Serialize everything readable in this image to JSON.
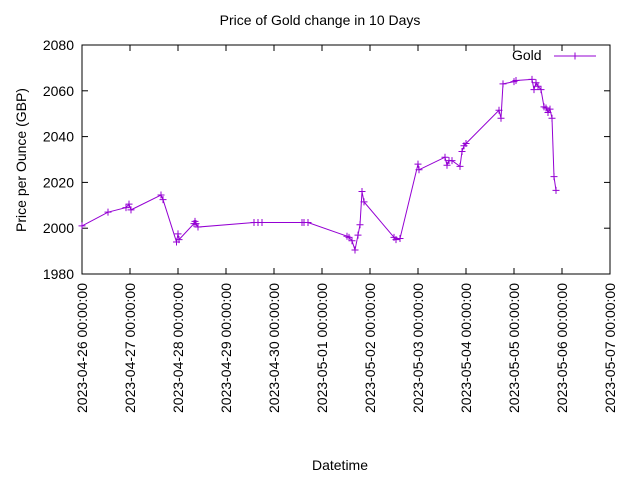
{
  "chart_data": {
    "type": "line",
    "title": "Price of Gold change in 10 Days",
    "xlabel": "Datetime",
    "ylabel": "Price per Ounce (GBP)",
    "ylim": [
      1980,
      2080
    ],
    "yticks": [
      1980,
      2000,
      2020,
      2040,
      2060,
      2080
    ],
    "xticks": [
      "2023-04-26 00:00:00",
      "2023-04-27 00:00:00",
      "2023-04-28 00:00:00",
      "2023-04-29 00:00:00",
      "2023-04-30 00:00:00",
      "2023-05-01 00:00:00",
      "2023-05-02 00:00:00",
      "2023-05-03 00:00:00",
      "2023-05-04 00:00:00",
      "2023-05-05 00:00:00",
      "2023-05-06 00:00:00",
      "2023-05-07 00:00:00"
    ],
    "xlim": [
      "2023-04-26 00:00:00",
      "2023-05-07 00:00:00"
    ],
    "legend_position": "top-right",
    "grid": false,
    "colors": {
      "series": "#9400d3",
      "axis": "#000000"
    },
    "series": [
      {
        "name": "Gold",
        "points": [
          [
            "2023-04-26 00:00:00",
            2001
          ],
          [
            "2023-04-26 13:00:00",
            2007
          ],
          [
            "2023-04-26 22:00:00",
            2009
          ],
          [
            "2023-04-26 23:30:00",
            2010.5
          ],
          [
            "2023-04-27 00:30:00",
            2008
          ],
          [
            "2023-04-27 15:30:00",
            2014.5
          ],
          [
            "2023-04-27 16:30:00",
            2012.5
          ],
          [
            "2023-04-27 23:15:00",
            1994
          ],
          [
            "2023-04-28 00:00:00",
            1997.5
          ],
          [
            "2023-04-28 00:30:00",
            1995
          ],
          [
            "2023-04-28 08:00:00",
            2002
          ],
          [
            "2023-04-28 08:30:00",
            2003
          ],
          [
            "2023-04-28 09:00:00",
            2002
          ],
          [
            "2023-04-28 10:00:00",
            2000.5
          ],
          [
            "2023-04-29 14:00:00",
            2002.5
          ],
          [
            "2023-04-29 16:00:00",
            2002.5
          ],
          [
            "2023-04-29 18:00:00",
            2002.5
          ],
          [
            "2023-04-30 14:00:00",
            2002.5
          ],
          [
            "2023-04-30 15:00:00",
            2002.5
          ],
          [
            "2023-04-30 17:00:00",
            2002.5
          ],
          [
            "2023-05-01 12:30:00",
            1996.5
          ],
          [
            "2023-05-01 13:30:00",
            1996
          ],
          [
            "2023-05-01 15:00:00",
            1994.5
          ],
          [
            "2023-05-01 16:30:00",
            1990.5
          ],
          [
            "2023-05-01 18:00:00",
            1997
          ],
          [
            "2023-05-01 19:00:00",
            2001.5
          ],
          [
            "2023-05-01 20:00:00",
            2016
          ],
          [
            "2023-05-01 21:00:00",
            2011.5
          ],
          [
            "2023-05-02 12:00:00",
            1996
          ],
          [
            "2023-05-02 13:00:00",
            1995
          ],
          [
            "2023-05-02 15:00:00",
            1995.5
          ],
          [
            "2023-05-03 00:00:00",
            2028
          ],
          [
            "2023-05-03 00:30:00",
            2025.5
          ],
          [
            "2023-05-03 13:30:00",
            2031
          ],
          [
            "2023-05-03 14:30:00",
            2027.5
          ],
          [
            "2023-05-03 15:30:00",
            2029.5
          ],
          [
            "2023-05-03 17:00:00",
            2029.5
          ],
          [
            "2023-05-03 21:00:00",
            2027
          ],
          [
            "2023-05-03 22:00:00",
            2033.5
          ],
          [
            "2023-05-03 23:00:00",
            2036
          ],
          [
            "2023-05-04 00:00:00",
            2037
          ],
          [
            "2023-05-04 16:30:00",
            2051.5
          ],
          [
            "2023-05-04 17:30:00",
            2048
          ],
          [
            "2023-05-04 18:30:00",
            2063
          ],
          [
            "2023-05-05 00:00:00",
            2064
          ],
          [
            "2023-05-05 01:00:00",
            2064.5
          ],
          [
            "2023-05-05 09:00:00",
            2065
          ],
          [
            "2023-05-05 10:00:00",
            2060.5
          ],
          [
            "2023-05-05 11:00:00",
            2063.5
          ],
          [
            "2023-05-05 12:00:00",
            2062
          ],
          [
            "2023-05-05 13:30:00",
            2060.5
          ],
          [
            "2023-05-05 15:00:00",
            2053
          ],
          [
            "2023-05-05 16:00:00",
            2052.5
          ],
          [
            "2023-05-05 17:00:00",
            2050.5
          ],
          [
            "2023-05-05 18:00:00",
            2052
          ],
          [
            "2023-05-05 19:00:00",
            2048
          ],
          [
            "2023-05-05 20:00:00",
            2022.5
          ],
          [
            "2023-05-05 21:00:00",
            2016.5
          ]
        ]
      }
    ]
  }
}
